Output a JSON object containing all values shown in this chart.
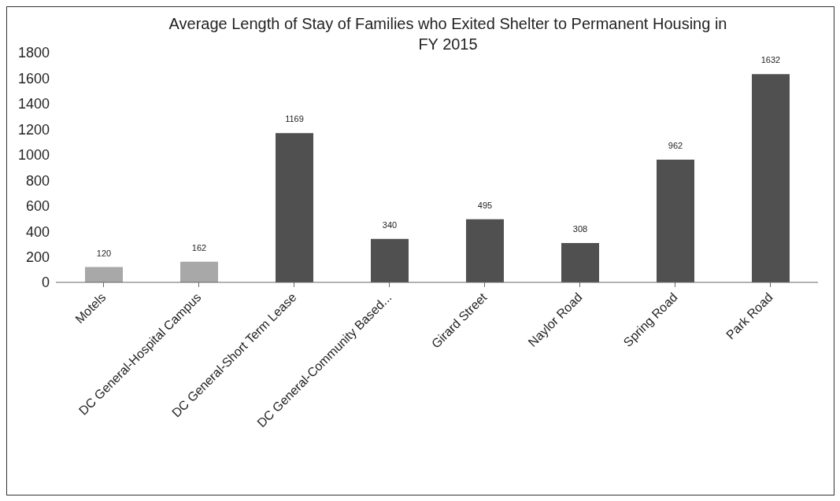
{
  "chart_data": {
    "type": "bar",
    "title": "Average Length of Stay of Families who Exited Shelter to Permanent Housing in FY 2015",
    "categories": [
      "Motels",
      "DC General-Hospital Campus",
      "DC General-Short Term Lease",
      "DC General-Community Based...",
      "Girard Street",
      "Naylor Road",
      "Spring Road",
      "Park Road"
    ],
    "values": [
      120,
      162,
      1169,
      340,
      495,
      308,
      962,
      1632
    ],
    "colors": [
      "#a8a8a8",
      "#a8a8a8",
      "#505050",
      "#505050",
      "#505050",
      "#505050",
      "#505050",
      "#505050"
    ],
    "ylim": [
      0,
      1800
    ],
    "yticks": [
      0,
      200,
      400,
      600,
      800,
      1000,
      1200,
      1400,
      1600,
      1800
    ],
    "data_labels": true
  }
}
